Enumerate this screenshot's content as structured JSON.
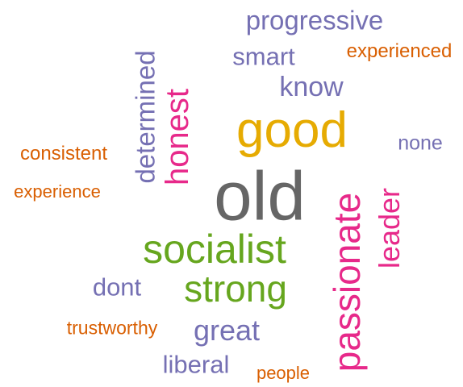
{
  "palette": {
    "purple": "#7570b3",
    "orange": "#d95f02",
    "gold": "#e6ab02",
    "magenta": "#e7298a",
    "green": "#66a61e",
    "gray": "#666666"
  },
  "words": [
    {
      "text": "progressive",
      "color": "#7570b3",
      "orientation": "horizontal"
    },
    {
      "text": "experienced",
      "color": "#d95f02",
      "orientation": "horizontal"
    },
    {
      "text": "smart",
      "color": "#7570b3",
      "orientation": "horizontal"
    },
    {
      "text": "know",
      "color": "#7570b3",
      "orientation": "horizontal"
    },
    {
      "text": "determined",
      "color": "#7570b3",
      "orientation": "vertical"
    },
    {
      "text": "honest",
      "color": "#e7298a",
      "orientation": "vertical"
    },
    {
      "text": "good",
      "color": "#e6ab02",
      "orientation": "horizontal"
    },
    {
      "text": "none",
      "color": "#7570b3",
      "orientation": "horizontal"
    },
    {
      "text": "consistent",
      "color": "#d95f02",
      "orientation": "horizontal"
    },
    {
      "text": "experience",
      "color": "#d95f02",
      "orientation": "horizontal"
    },
    {
      "text": "old",
      "color": "#666666",
      "orientation": "horizontal"
    },
    {
      "text": "leader",
      "color": "#e7298a",
      "orientation": "vertical"
    },
    {
      "text": "passionate",
      "color": "#e7298a",
      "orientation": "vertical"
    },
    {
      "text": "socialist",
      "color": "#66a61e",
      "orientation": "horizontal"
    },
    {
      "text": "dont",
      "color": "#7570b3",
      "orientation": "horizontal"
    },
    {
      "text": "strong",
      "color": "#66a61e",
      "orientation": "horizontal"
    },
    {
      "text": "trustworthy",
      "color": "#d95f02",
      "orientation": "horizontal"
    },
    {
      "text": "great",
      "color": "#7570b3",
      "orientation": "horizontal"
    },
    {
      "text": "liberal",
      "color": "#7570b3",
      "orientation": "horizontal"
    },
    {
      "text": "people",
      "color": "#d95f02",
      "orientation": "horizontal"
    }
  ]
}
